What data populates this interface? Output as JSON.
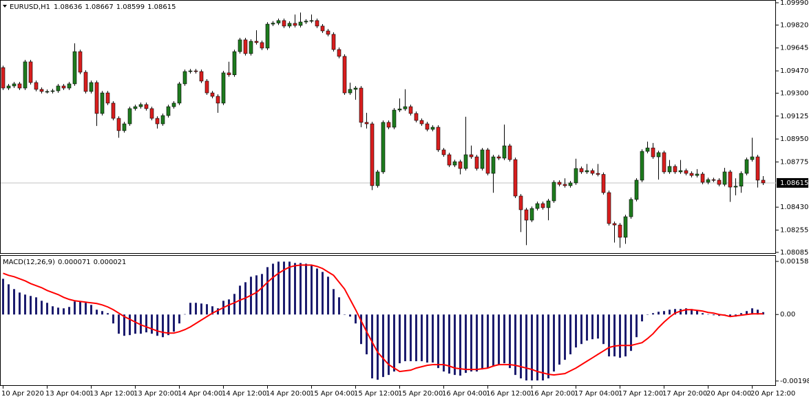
{
  "chart_data": [
    {
      "type": "candlestick",
      "title": "EURUSD,H1",
      "open": [
        1.09495,
        1.09339,
        1.09355,
        1.09371,
        1.09339,
        1.09539,
        1.09381,
        1.09329,
        1.09313,
        1.09313,
        1.09318,
        1.09355,
        1.09339,
        1.09371,
        1.09617,
        1.0946,
        1.09313,
        1.09381,
        1.09145,
        1.09302,
        1.09224,
        1.09108,
        1.09014,
        1.09066,
        1.09182,
        1.09197,
        1.09213,
        1.09182,
        1.09108,
        1.09066,
        1.09129,
        1.09197,
        1.09224,
        1.09371,
        1.09465,
        1.0947,
        1.09465,
        1.09392,
        1.09302,
        1.09276,
        1.09224,
        1.09455,
        1.0944,
        1.09617,
        1.09707,
        1.09602,
        1.09696,
        1.09686,
        1.09644,
        1.09827,
        1.09835,
        1.09854,
        1.09812,
        1.09833,
        1.09817,
        1.09843,
        1.0985,
        1.09854,
        1.09812,
        1.09775,
        1.09749,
        1.09633,
        1.09581,
        1.09302,
        1.09329,
        1.09339,
        1.09077,
        1.09066,
        1.08594,
        1.08699,
        1.09077,
        1.0904,
        1.09171,
        1.0918,
        1.09197,
        1.09145,
        1.09092,
        1.09066,
        1.09024,
        1.0904,
        1.08867,
        1.0883,
        1.08751,
        1.08777,
        1.08725,
        1.0883,
        1.08814,
        1.08725,
        1.08867,
        1.08688,
        1.08814,
        1.08804,
        1.08898,
        1.08793,
        1.08515,
        1.0841,
        1.08331,
        1.0842,
        1.08457,
        1.08426,
        1.08478,
        1.0862,
        1.08604,
        1.08594,
        1.08615,
        1.08725,
        1.08699,
        1.08709,
        1.08688,
        1.0868,
        1.08541,
        1.08305,
        1.08294,
        1.082,
        1.08357,
        1.08489,
        1.08636,
        1.08856,
        1.08882,
        1.08814,
        1.08846,
        1.08699,
        1.08741,
        1.08699,
        1.08709,
        1.08688,
        1.08672,
        1.08683,
        1.0862,
        1.0864,
        1.08636,
        1.08604,
        1.08699,
        1.08583,
        1.0859,
        1.08688,
        1.08793,
        1.08814,
        1.08636
      ],
      "high": [
        1.0951,
        1.0937,
        1.09386,
        1.09386,
        1.09554,
        1.09554,
        1.09396,
        1.09344,
        1.09328,
        1.09333,
        1.0937,
        1.0937,
        1.09386,
        1.0968,
        1.09632,
        1.09475,
        1.09396,
        1.09396,
        1.09317,
        1.09317,
        1.09239,
        1.09123,
        1.09081,
        1.09197,
        1.09212,
        1.09228,
        1.09228,
        1.09197,
        1.09123,
        1.09144,
        1.09212,
        1.09239,
        1.09386,
        1.0948,
        1.09485,
        1.09485,
        1.0948,
        1.09407,
        1.09317,
        1.09291,
        1.0947,
        1.0954,
        1.09632,
        1.09722,
        1.09722,
        1.09711,
        1.0978,
        1.09701,
        1.09842,
        1.0985,
        1.09869,
        1.09869,
        1.09848,
        1.099,
        1.09915,
        1.09865,
        1.099,
        1.09869,
        1.09827,
        1.0979,
        1.09764,
        1.09648,
        1.09596,
        1.0938,
        1.09354,
        1.09354,
        1.0915,
        1.09081,
        1.08714,
        1.09092,
        1.09092,
        1.09186,
        1.0926,
        1.0933,
        1.09212,
        1.0916,
        1.09107,
        1.09081,
        1.09055,
        1.09055,
        1.08882,
        1.08845,
        1.08792,
        1.08792,
        1.0912,
        1.089,
        1.08829,
        1.08882,
        1.08882,
        1.08829,
        1.08829,
        1.0906,
        1.08913,
        1.08808,
        1.0853,
        1.08425,
        1.08435,
        1.08472,
        1.08472,
        1.08493,
        1.08635,
        1.08635,
        1.0865,
        1.0863,
        1.088,
        1.0874,
        1.0876,
        1.08724,
        1.0876,
        1.08695,
        1.08556,
        1.0832,
        1.08309,
        1.08372,
        1.08504,
        1.08651,
        1.08871,
        1.0893,
        1.0892,
        1.08861,
        1.08861,
        1.0879,
        1.08756,
        1.0879,
        1.08724,
        1.08703,
        1.0872,
        1.08698,
        1.08655,
        1.08655,
        1.08651,
        1.0873,
        1.08714,
        1.0865,
        1.08703,
        1.08808,
        1.0896,
        1.08829,
        1.08667
      ],
      "low": [
        1.09324,
        1.09324,
        1.0934,
        1.09324,
        1.09324,
        1.09366,
        1.09314,
        1.09298,
        1.09298,
        1.09298,
        1.09303,
        1.09324,
        1.09324,
        1.09356,
        1.09445,
        1.09298,
        1.09298,
        1.0905,
        1.0913,
        1.09209,
        1.09093,
        1.0896,
        1.08999,
        1.09051,
        1.09167,
        1.09182,
        1.09167,
        1.09093,
        1.0903,
        1.09051,
        1.09114,
        1.09182,
        1.09209,
        1.09356,
        1.0945,
        1.0945,
        1.09377,
        1.09287,
        1.09261,
        1.0915,
        1.09209,
        1.09425,
        1.09425,
        1.09602,
        1.09587,
        1.09587,
        1.09671,
        1.09629,
        1.09629,
        1.09812,
        1.0982,
        1.09797,
        1.09797,
        1.09802,
        1.09802,
        1.09828,
        1.09835,
        1.09797,
        1.0976,
        1.09734,
        1.09618,
        1.09566,
        1.09287,
        1.09287,
        1.0925,
        1.0904,
        1.0903,
        1.0856,
        1.08579,
        1.08684,
        1.09025,
        1.09025,
        1.09156,
        1.09165,
        1.0913,
        1.09077,
        1.09051,
        1.09009,
        1.09009,
        1.08852,
        1.08815,
        1.08736,
        1.08736,
        1.0868,
        1.0871,
        1.08799,
        1.0871,
        1.0871,
        1.08673,
        1.0854,
        1.08789,
        1.08789,
        1.08778,
        1.085,
        1.0824,
        1.0814,
        1.08316,
        1.08405,
        1.08411,
        1.0833,
        1.08463,
        1.08589,
        1.08579,
        1.08579,
        1.086,
        1.08684,
        1.08684,
        1.08673,
        1.08665,
        1.08526,
        1.0829,
        1.0816,
        1.0812,
        1.0815,
        1.08342,
        1.08474,
        1.08621,
        1.08841,
        1.08799,
        1.0864,
        1.08684,
        1.08684,
        1.08684,
        1.08684,
        1.08673,
        1.08657,
        1.08657,
        1.08605,
        1.08605,
        1.08621,
        1.08589,
        1.08589,
        1.0847,
        1.0852,
        1.0854,
        1.08673,
        1.08778,
        1.0858,
        1.08599
      ],
      "close": [
        1.09339,
        1.09355,
        1.09371,
        1.09339,
        1.09539,
        1.09381,
        1.09329,
        1.09313,
        1.09313,
        1.09318,
        1.09355,
        1.09339,
        1.09371,
        1.09617,
        1.0946,
        1.09313,
        1.09381,
        1.09145,
        1.09302,
        1.09224,
        1.09108,
        1.09014,
        1.09066,
        1.09182,
        1.09197,
        1.09213,
        1.09182,
        1.09108,
        1.09066,
        1.09129,
        1.09197,
        1.09224,
        1.09371,
        1.09465,
        1.0947,
        1.09465,
        1.09392,
        1.09302,
        1.09276,
        1.09224,
        1.09455,
        1.0944,
        1.09617,
        1.09707,
        1.09602,
        1.09696,
        1.09686,
        1.09644,
        1.09827,
        1.09835,
        1.09854,
        1.09812,
        1.09833,
        1.09817,
        1.09843,
        1.0985,
        1.09854,
        1.09812,
        1.09775,
        1.09749,
        1.09633,
        1.09581,
        1.09302,
        1.09329,
        1.09339,
        1.09077,
        1.09066,
        1.08594,
        1.08699,
        1.09077,
        1.0904,
        1.09171,
        1.0918,
        1.09197,
        1.09145,
        1.09092,
        1.09066,
        1.09024,
        1.0904,
        1.08867,
        1.0883,
        1.08751,
        1.08777,
        1.08725,
        1.0883,
        1.08814,
        1.08725,
        1.08867,
        1.08688,
        1.08814,
        1.08804,
        1.08898,
        1.08793,
        1.08515,
        1.0841,
        1.08331,
        1.0842,
        1.08457,
        1.08426,
        1.08478,
        1.0862,
        1.08604,
        1.08594,
        1.08615,
        1.08725,
        1.08699,
        1.08709,
        1.08688,
        1.0868,
        1.08541,
        1.08305,
        1.08294,
        1.082,
        1.08357,
        1.08489,
        1.08636,
        1.08856,
        1.08882,
        1.08814,
        1.08846,
        1.08699,
        1.08741,
        1.08699,
        1.08709,
        1.08688,
        1.08672,
        1.08683,
        1.0862,
        1.0864,
        1.08636,
        1.08604,
        1.08699,
        1.08583,
        1.0859,
        1.08688,
        1.08793,
        1.08814,
        1.08636,
        1.08615
      ],
      "up_color": "#1e7b1e",
      "down_color": "#d81e1e",
      "wick_color": "#000000",
      "price_line_color": "#c0c0c0",
      "ylim": [
        1.08074,
        1.10011
      ],
      "yticks": [
        {
          "value": 1.0999,
          "label": "1.09990"
        },
        {
          "value": 1.0982,
          "label": "1.09820"
        },
        1.09645,
        {
          "value": 1.0947,
          "label": "1.09470"
        },
        {
          "value": 1.093,
          "label": "1.09300"
        },
        1.09125,
        {
          "value": 1.0895,
          "label": "1.08950"
        },
        1.08775,
        {
          "value": 1.0843,
          "label": "1.08430"
        },
        1.08255,
        1.08085
      ]
    },
    {
      "type": "macd",
      "title": "MACD(12,26,9)",
      "categories": [
        "10 Apr 2020",
        null,
        null,
        null,
        null,
        null,
        null,
        null,
        "13 Apr 04:00",
        null,
        null,
        null,
        null,
        null,
        null,
        null,
        "13 Apr 12:00",
        null,
        null,
        null,
        null,
        null,
        null,
        null,
        "13 Apr 20:00",
        null,
        null,
        null,
        null,
        null,
        null,
        null,
        "14 Apr 04:00",
        null,
        null,
        null,
        null,
        null,
        null,
        null,
        "14 Apr 12:00",
        null,
        null,
        null,
        null,
        null,
        null,
        null,
        "14 Apr 20:00",
        null,
        null,
        null,
        null,
        null,
        null,
        null,
        "15 Apr 04:00",
        null,
        null,
        null,
        null,
        null,
        null,
        null,
        "15 Apr 12:00",
        null,
        null,
        null,
        null,
        null,
        null,
        null,
        "15 Apr 20:00",
        null,
        null,
        null,
        null,
        null,
        null,
        null,
        "16 Apr 04:00",
        null,
        null,
        null,
        null,
        null,
        null,
        null,
        "16 Apr 12:00",
        null,
        null,
        null,
        null,
        null,
        null,
        null,
        "16 Apr 20:00",
        null,
        null,
        null,
        null,
        null,
        null,
        null,
        "17 Apr 04:00",
        null,
        null,
        null,
        null,
        null,
        null,
        null,
        "17 Apr 12:00",
        null,
        null,
        null,
        null,
        null,
        null,
        null,
        "17 Apr 20:00",
        null,
        null,
        null,
        null,
        null,
        null,
        null,
        "20 Apr 04:00",
        null,
        null,
        null,
        null,
        null,
        null,
        null,
        "20 Apr 12:00",
        null,
        null
      ],
      "series": [
        {
          "style": "histogram",
          "color": "#1c1c6e",
          "values": [
            0.001066,
            0.000902,
            0.000759,
            0.000656,
            0.000595,
            0.000554,
            0.000513,
            0.00041,
            0.000349,
            0.000246,
            0.000205,
            0.000185,
            0.000226,
            0.00039,
            0.00039,
            0.000349,
            0.000287,
            0.000144,
            0.000103,
            4.1e-05,
            -0.000267,
            -0.000574,
            -0.000636,
            -0.000615,
            -0.000574,
            -0.000574,
            -0.000533,
            -0.000574,
            -0.000636,
            -0.000677,
            -0.000615,
            -0.000513,
            -0.000267,
            1e-05,
            0.000349,
            0.000349,
            0.000328,
            0.000308,
            0.000246,
            0.000185,
            0.00041,
            0.000451,
            0.000615,
            0.000861,
            0.000964,
            0.001128,
            0.001169,
            0.00121,
            0.001415,
            0.001517,
            0.001579,
            0.001579,
            0.001579,
            0.001538,
            0.001538,
            0.001517,
            0.001456,
            0.001374,
            0.001271,
            0.001128,
            0.000759,
            0.000513,
            -1e-05,
            -6.2e-05,
            -0.000267,
            -0.000882,
            -0.001189,
            -0.001907,
            -0.001948,
            -0.001866,
            -0.001804,
            -0.001702,
            -0.001456,
            -0.001394,
            -0.001394,
            -0.001394,
            -0.001394,
            -0.001435,
            -0.001435,
            -0.001599,
            -0.001702,
            -0.001763,
            -0.001804,
            -0.001825,
            -0.001743,
            -0.001702,
            -0.001702,
            -0.00164,
            -0.001599,
            -0.001558,
            -0.001497,
            -0.001456,
            -0.001599,
            -0.001804,
            -0.001907,
            -0.001968,
            -0.001968,
            -0.001968,
            -0.001968,
            -0.001907,
            -0.001702,
            -0.001497,
            -0.001353,
            -0.001189,
            -0.000984,
            -0.000882,
            -0.000779,
            -0.000738,
            -0.000718,
            -0.000882,
            -0.001251,
            -0.001251,
            -0.001292,
            -0.001251,
            -0.001087,
            -0.000677,
            -0.000205,
            -1e-05,
            4.1e-05,
            8.2e-05,
            0.000103,
            0.000144,
            0.000164,
            0.000164,
            0.000185,
            0.000164,
            0.000123,
            4.1e-05,
            1e-05,
            -2.1e-05,
            -4.1e-05,
            -5e-06,
            -6.2e-05,
            -6.2e-05,
            4.1e-05,
            0.000103,
            0.000185,
            0.000144,
            7.1e-05
          ]
        },
        {
          "style": "line",
          "color": "#ff0000",
          "values": [
            0.00123,
            0.001169,
            0.001128,
            0.001066,
            0.001005,
            0.000923,
            0.000861,
            0.0008,
            0.000718,
            0.000656,
            0.000595,
            0.000513,
            0.000451,
            0.00041,
            0.00039,
            0.000369,
            0.000349,
            0.000328,
            0.000287,
            0.000226,
            0.000144,
            4.1e-05,
            -6.2e-05,
            -0.000144,
            -0.000226,
            -0.000308,
            -0.000369,
            -0.000431,
            -0.000492,
            -0.000533,
            -0.000554,
            -0.000554,
            -0.000513,
            -0.000451,
            -0.000369,
            -0.000267,
            -0.000164,
            -6.2e-05,
            4.1e-05,
            0.000123,
            0.000205,
            0.000287,
            0.000349,
            0.000431,
            0.000492,
            0.000574,
            0.000656,
            0.0008,
            0.000964,
            0.001107,
            0.00123,
            0.001333,
            0.001415,
            0.001456,
            0.001476,
            0.001476,
            0.001476,
            0.001435,
            0.001374,
            0.001271,
            0.001169,
            0.000964,
            0.000759,
            0.000451,
            0.000144,
            -0.000185,
            -0.000513,
            -0.00082,
            -0.001128,
            -0.001312,
            -0.001497,
            -0.001599,
            -0.001702,
            -0.001681,
            -0.001661,
            -0.001599,
            -0.001558,
            -0.001517,
            -0.001497,
            -0.001497,
            -0.001497,
            -0.001538,
            -0.001599,
            -0.00162,
            -0.00164,
            -0.00164,
            -0.00164,
            -0.00162,
            -0.001599,
            -0.001538,
            -0.001497,
            -0.001497,
            -0.001497,
            -0.001517,
            -0.001558,
            -0.001599,
            -0.00164,
            -0.001702,
            -0.001743,
            -0.001784,
            -0.001804,
            -0.001784,
            -0.001763,
            -0.001681,
            -0.001599,
            -0.001497,
            -0.001394,
            -0.001292,
            -0.001189,
            -0.001087,
            -0.000984,
            -0.000943,
            -0.000923,
            -0.000923,
            -0.000923,
            -0.000882,
            -0.000841,
            -0.000718,
            -0.000574,
            -0.00039,
            -0.000226,
            -8.2e-05,
            4.1e-05,
            0.000103,
            0.000144,
            0.000144,
            0.000123,
            0.000103,
            6.2e-05,
            4.1e-05,
            0,
            -2.1e-05,
            -6.2e-05,
            -4.1e-05,
            -2.1e-05,
            0,
            2.1e-05,
            2.1e-05,
            2.1e-05
          ]
        }
      ],
      "ylim": [
        -0.00211,
        0.00173
      ],
      "yticks": [
        0.001585,
        {
          "value": 0,
          "label": "0.00"
        },
        -0.001985
      ]
    }
  ]
}
